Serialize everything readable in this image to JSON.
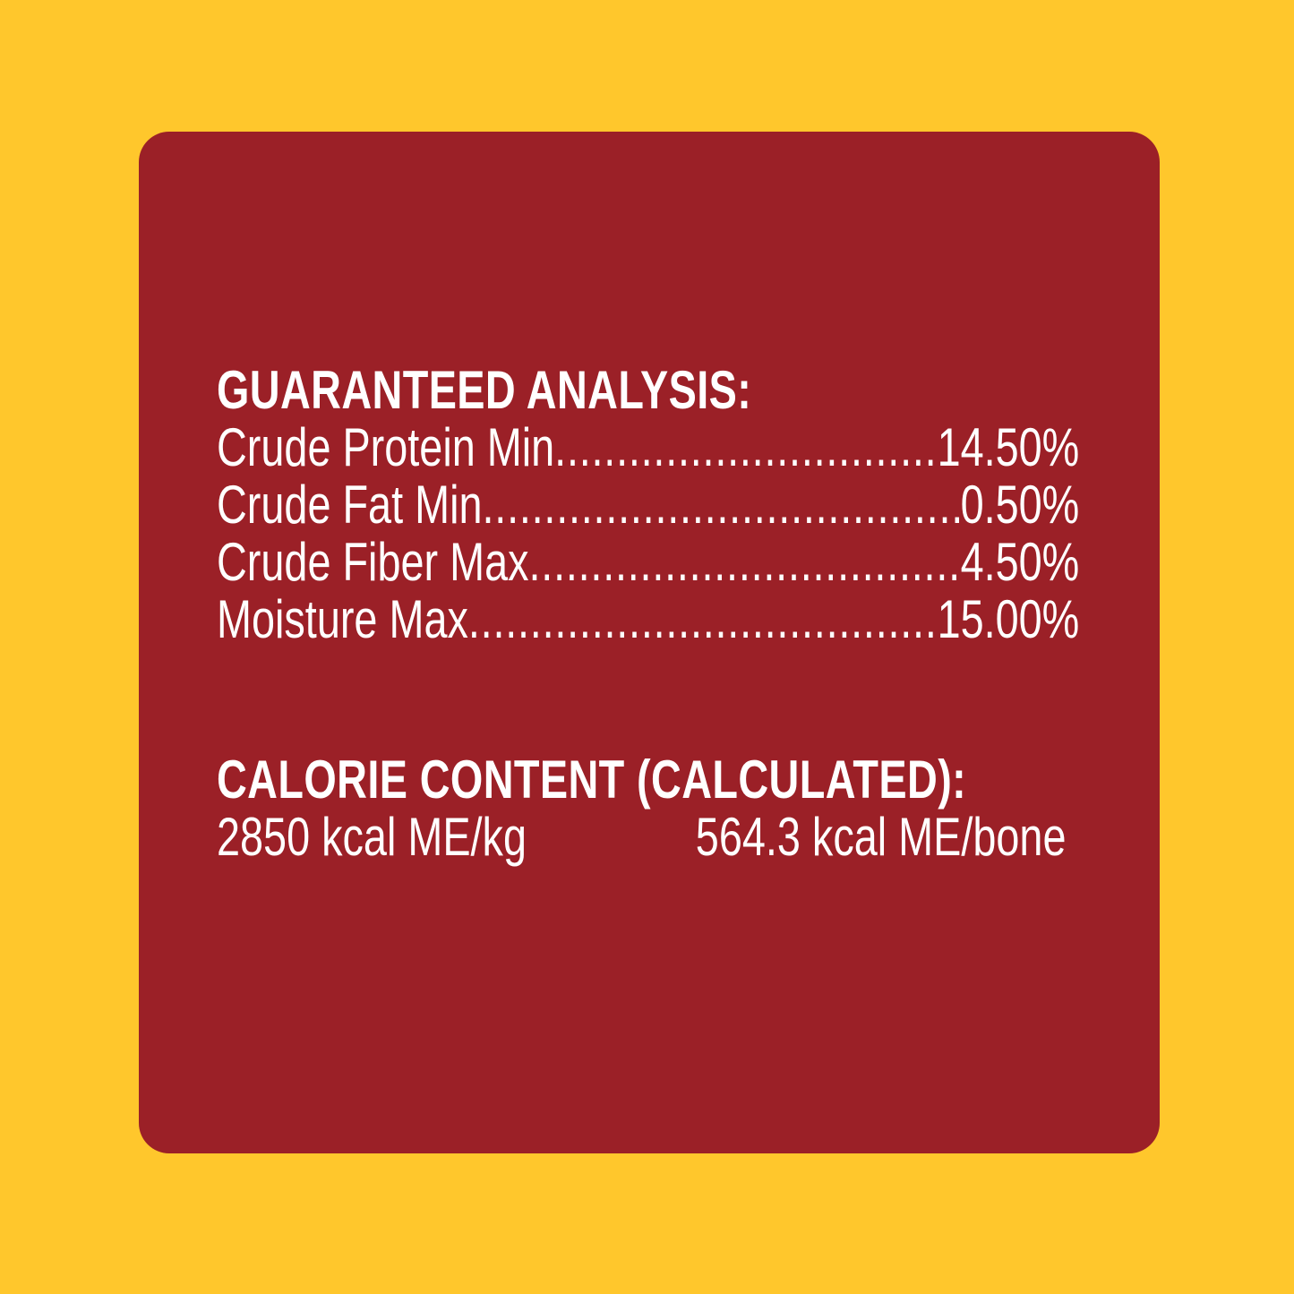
{
  "colors": {
    "background": "#FFC72C",
    "panel": "#9B2027",
    "text": "#FFFFFF"
  },
  "guaranteed_analysis": {
    "title": "GUARANTEED ANALYSIS:",
    "rows": [
      {
        "label": "Crude Protein Min",
        "value": "14.50%"
      },
      {
        "label": "Crude Fat Min",
        "value": "0.50%"
      },
      {
        "label": "Crude Fiber Max",
        "value": "4.50%"
      },
      {
        "label": "Moisture Max",
        "value": "15.00%"
      }
    ]
  },
  "calorie_content": {
    "title": "CALORIE CONTENT (CALCULATED):",
    "per_kg": "2850 kcal ME/kg",
    "per_bone": "564.3 kcal ME/bone"
  }
}
